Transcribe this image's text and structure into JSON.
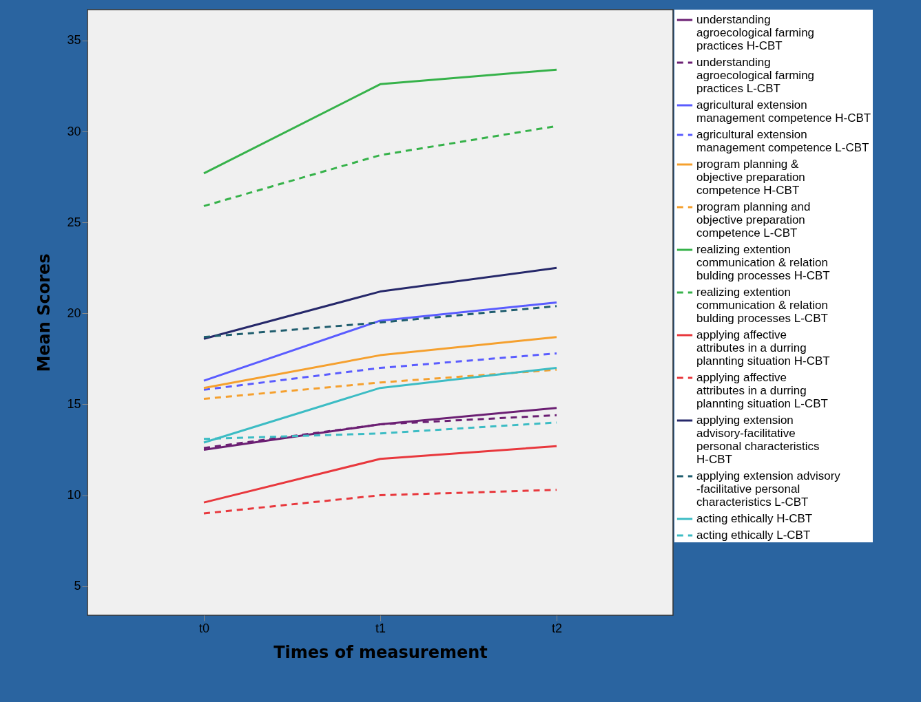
{
  "chart_data": {
    "type": "line",
    "xlabel": "Times of measurement",
    "ylabel": "Mean Scores",
    "categories": [
      "t0",
      "t1",
      "t2"
    ],
    "ylim": [
      3.4,
      36.7
    ],
    "yticks": [
      5,
      10,
      15,
      20,
      25,
      30,
      35
    ],
    "grid": false,
    "legend": "right",
    "series": [
      {
        "name": "understanding agroecological farming practices H-CBT",
        "color": "#6b1f73",
        "line_style": "solid",
        "values": [
          12.5,
          13.9,
          14.8
        ]
      },
      {
        "name": "understanding agroecological farming practices L-CBT",
        "color": "#6b1f73",
        "line_style": "dashed",
        "values": [
          12.6,
          13.9,
          14.4
        ]
      },
      {
        "name": "agricultural extension management competence H-CBT",
        "color": "#5a5cff",
        "line_style": "solid",
        "values": [
          16.3,
          19.6,
          20.6
        ]
      },
      {
        "name": "agricultural extension management competence L-CBT",
        "color": "#5a5cff",
        "line_style": "dashed",
        "values": [
          15.8,
          17.0,
          17.8
        ]
      },
      {
        "name": "program planning & objective preparation competence H-CBT",
        "color": "#f5a02e",
        "line_style": "solid",
        "values": [
          15.9,
          17.7,
          18.7
        ]
      },
      {
        "name": "program planning and objective preparation competence L-CBT",
        "color": "#f5a02e",
        "line_style": "dashed",
        "values": [
          15.3,
          16.2,
          16.9
        ]
      },
      {
        "name": "realizing extention communication & relation bulding processes H-CBT",
        "color": "#36b24a",
        "line_style": "solid",
        "values": [
          27.7,
          32.6,
          33.4
        ]
      },
      {
        "name": "realizing extention communication & relation bulding processes L-CBT",
        "color": "#36b24a",
        "line_style": "dashed",
        "values": [
          25.9,
          28.7,
          30.3
        ]
      },
      {
        "name": "applying affective attributes in a durring plannting situation H-CBT",
        "color": "#e8383d",
        "line_style": "solid",
        "values": [
          9.6,
          12.0,
          12.7
        ]
      },
      {
        "name": "applying affective attributes in a durring plannting situation L-CBT",
        "color": "#e8383d",
        "line_style": "dashed",
        "values": [
          9.0,
          10.0,
          10.3
        ]
      },
      {
        "name": "applying extension advisory-facilitative personal characteristics H-CBT",
        "color": "#26286a",
        "line_style": "solid",
        "values": [
          18.6,
          21.2,
          22.5
        ]
      },
      {
        "name": "applying extension advisory -facilitative personal characteristics L-CBT",
        "color": "#1f5d6e",
        "line_style": "dashed",
        "values": [
          18.7,
          19.5,
          20.4
        ]
      },
      {
        "name": "acting ethically H-CBT",
        "color": "#3cbcc4",
        "line_style": "solid",
        "values": [
          12.9,
          15.9,
          17.0
        ]
      },
      {
        "name": "acting ethically L-CBT",
        "color": "#3cbcc4",
        "line_style": "dashed",
        "values": [
          13.1,
          13.4,
          14.0
        ]
      }
    ]
  }
}
